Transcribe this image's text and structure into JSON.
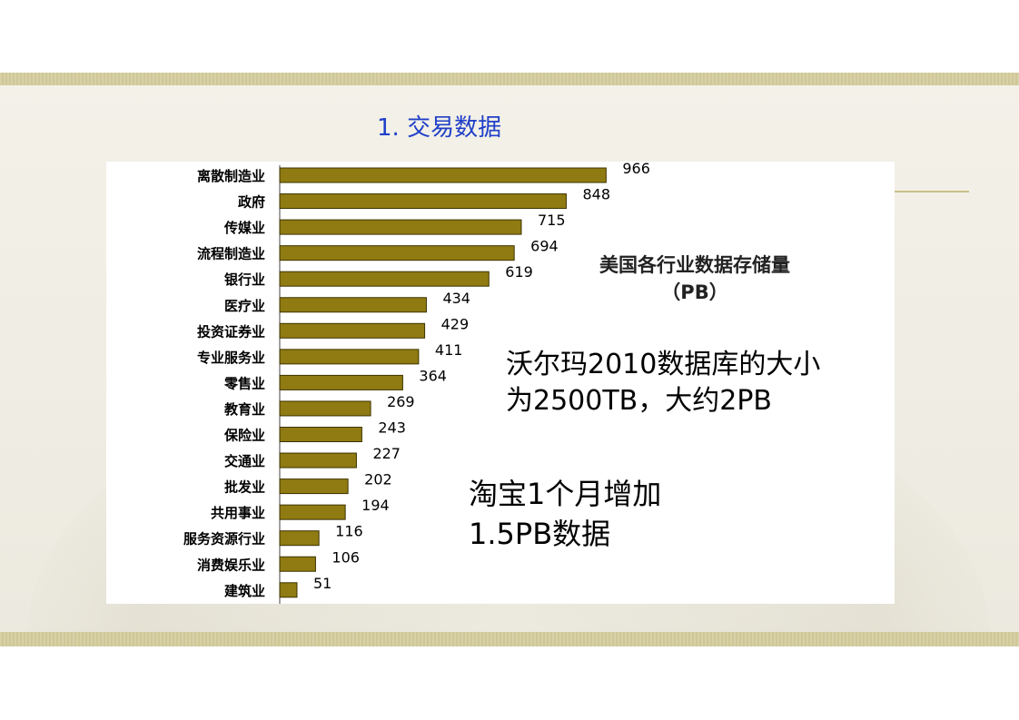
{
  "slide": {
    "title": "1. 交易数据",
    "notes": {
      "walmart_line1": "沃尔玛2010数据库的大小",
      "walmart_line2": "为2500TB，大约2PB",
      "taobao_line1": "淘宝1个月增加",
      "taobao_line2": "1.5PB数据"
    }
  },
  "colors": {
    "bar_fill": "#8f7b11",
    "bar_stroke": "#3d3300",
    "title": "#1f3fc9"
  },
  "chart_data": {
    "type": "bar",
    "orientation": "horizontal",
    "title_line1": "美国各行业数据存储量",
    "title_line2": "（PB）",
    "categories": [
      "离散制造业",
      "政府",
      "传媒业",
      "流程制造业",
      "银行业",
      "医疗业",
      "投资证券业",
      "专业服务业",
      "零售业",
      "教育业",
      "保险业",
      "交通业",
      "批发业",
      "共用事业",
      "服务资源行业",
      "消费娱乐业",
      "建筑业"
    ],
    "values": [
      966,
      848,
      715,
      694,
      619,
      434,
      429,
      411,
      364,
      269,
      243,
      227,
      202,
      194,
      116,
      106,
      51
    ],
    "xlim": [
      0,
      1000
    ],
    "grid": false,
    "data_labels": true
  }
}
